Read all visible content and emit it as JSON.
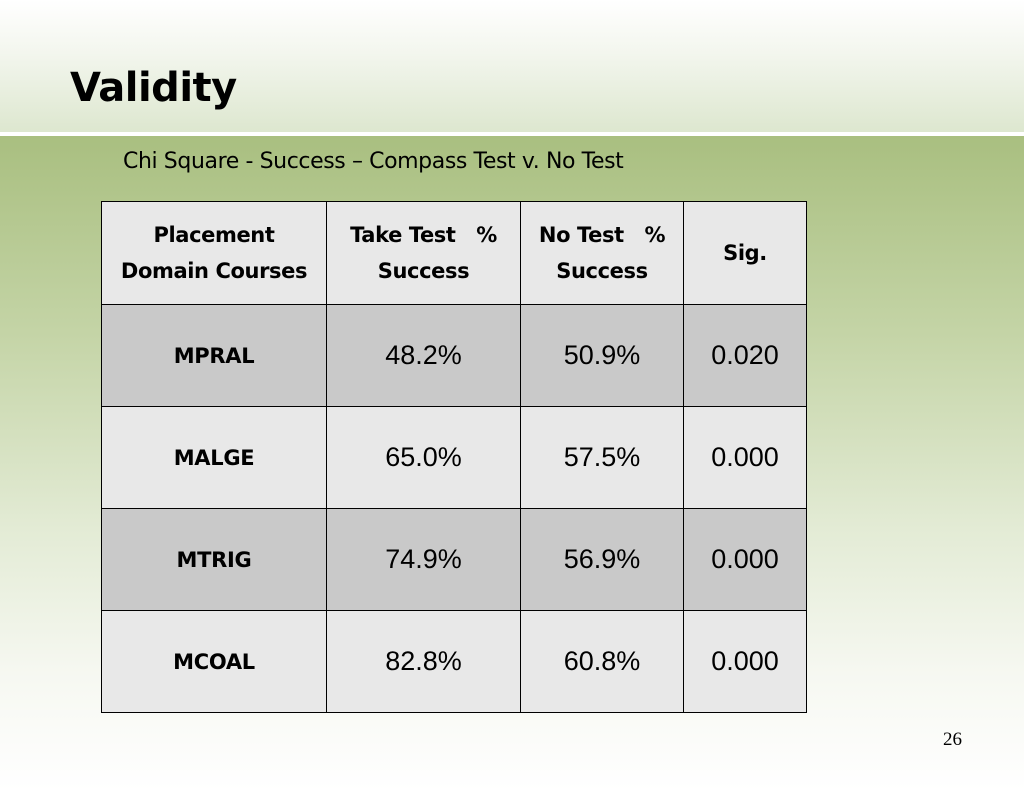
{
  "slide": {
    "title": "Validity",
    "subtitle": "Chi Square - Success – Compass Test v. No Test",
    "page_number": "26"
  },
  "table": {
    "headers": [
      {
        "line1": "Placement",
        "line2": "Domain Courses"
      },
      {
        "line1": "Take Test   %",
        "line2": "Success"
      },
      {
        "line1": "No Test   %",
        "line2": "Success"
      },
      {
        "line1": "Sig.",
        "line2": ""
      }
    ],
    "rows": [
      {
        "course": "MPRAL",
        "take_test": "48.2%",
        "no_test": "50.9%",
        "sig": "0.020"
      },
      {
        "course": "MALGE",
        "take_test": "65.0%",
        "no_test": "57.5%",
        "sig": "0.000"
      },
      {
        "course": "MTRIG",
        "take_test": "74.9%",
        "no_test": "56.9%",
        "sig": "0.000"
      },
      {
        "course": "MCOAL",
        "take_test": "82.8%",
        "no_test": "60.8%",
        "sig": "0.000"
      }
    ]
  }
}
